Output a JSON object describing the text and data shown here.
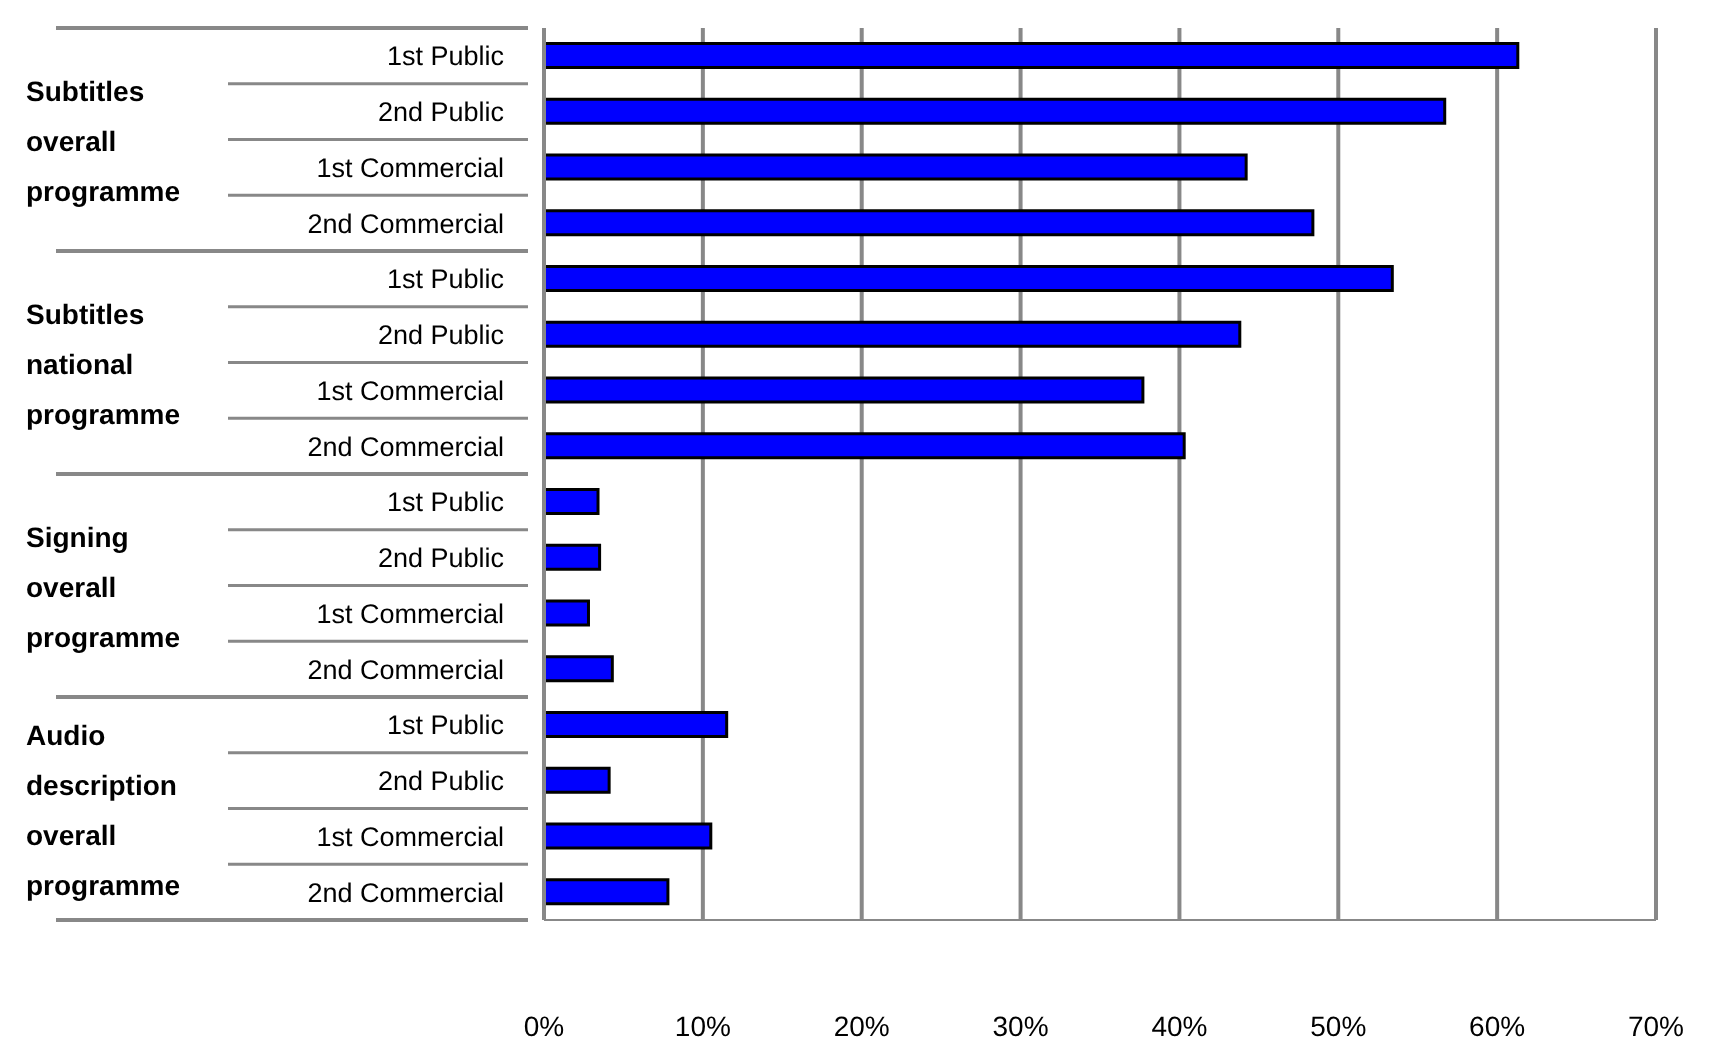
{
  "chart_data": {
    "type": "bar",
    "orientation": "horizontal",
    "categories": [
      "1st Public",
      "2nd Public",
      "1st Commercial",
      "2nd Commercial",
      "1st Public",
      "2nd Public",
      "1st Commercial",
      "2nd Commercial",
      "1st Public",
      "2nd Public",
      "1st Commercial",
      "2nd Commercial",
      "1st Public",
      "2nd Public",
      "1st Commercial",
      "2nd Commercial"
    ],
    "values": [
      61.3,
      56.7,
      44.2,
      48.4,
      53.4,
      43.8,
      37.7,
      40.3,
      3.4,
      3.5,
      2.8,
      4.3,
      11.5,
      4.1,
      10.5,
      7.8
    ],
    "color": "#0000ff",
    "xlim": [
      0,
      70
    ],
    "xticks": [
      {
        "value": 0,
        "label": "0%"
      },
      {
        "value": 10,
        "label": "10%"
      },
      {
        "value": 20,
        "label": "20%"
      },
      {
        "value": 30,
        "label": "30%"
      },
      {
        "value": 40,
        "label": "40%"
      },
      {
        "value": 50,
        "label": "50%"
      },
      {
        "value": 60,
        "label": "60%"
      },
      {
        "value": 70,
        "label": "70%"
      }
    ],
    "grid": "x",
    "annotations": [
      "Subtitles overall programme",
      "Subtitles national programme",
      "Signing overall programme",
      "Audio description overall programme"
    ]
  }
}
